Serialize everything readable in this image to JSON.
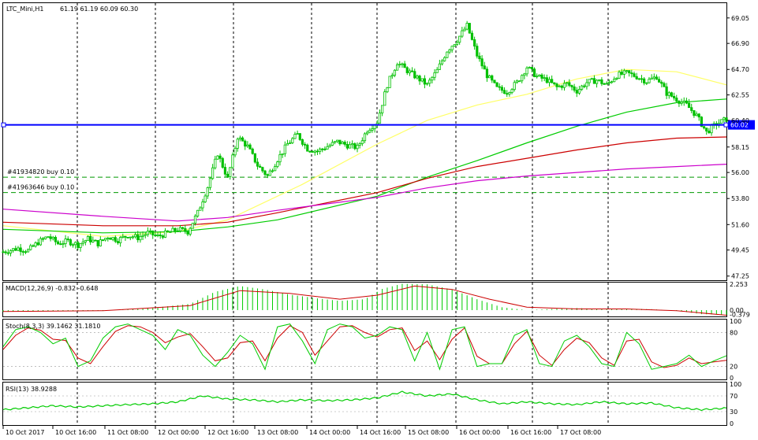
{
  "header": {
    "symbol_label": "LTC_Mini,H1",
    "ohlc_label": "61.19 61.19 60.09 60.30"
  },
  "colors": {
    "background": "#ffffff",
    "frame": "#000000",
    "candle_up": "#00c000",
    "candle_down": "#00c000",
    "ma_fast": "#ffff66",
    "ma_mid": "#00cc00",
    "ma_slow": "#cc0000",
    "ma_slowest": "#cc00cc",
    "price_line": "#0000ff",
    "orders": "#009900",
    "macd_hist": "#00cc00",
    "macd_signal": "#cc0000",
    "stoch_main": "#00cc00",
    "stoch_signal": "#cc0000",
    "rsi": "#00cc00"
  },
  "chart_data": {
    "type": "candlestick",
    "symbol": "LTC_Mini",
    "timeframe": "H1",
    "y_axis_ticks": [
      "69.05",
      "66.90",
      "64.70",
      "62.55",
      "60.40",
      "58.15",
      "56.00",
      "53.80",
      "51.60",
      "49.45",
      "47.25"
    ],
    "ylim": [
      46.9,
      70.3
    ],
    "x_axis_labels": [
      "10 Oct 2017",
      "10 Oct 16:00",
      "11 Oct 08:00",
      "12 Oct 00:00",
      "12 Oct 16:00",
      "13 Oct 08:00",
      "14 Oct 00:00",
      "14 Oct 16:00",
      "15 Oct 08:00",
      "16 Oct 00:00",
      "16 Oct 16:00",
      "17 Oct 08:00"
    ],
    "current_price": "60.02",
    "horizontal_line": 60.02,
    "orders": [
      {
        "label": "#41934820 buy 0.10",
        "price": 55.6
      },
      {
        "label": "#41963646 buy 0.10",
        "price": 54.3
      }
    ],
    "price_path": [
      [
        0,
        49.3
      ],
      [
        6,
        49.6
      ],
      [
        10,
        49.4
      ],
      [
        14,
        50.1
      ],
      [
        18,
        50.6
      ],
      [
        22,
        50.0
      ],
      [
        26,
        50.2
      ],
      [
        30,
        49.9
      ],
      [
        34,
        50.4
      ],
      [
        38,
        50.0
      ],
      [
        42,
        50.6
      ],
      [
        46,
        50.3
      ],
      [
        50,
        50.7
      ],
      [
        54,
        50.5
      ],
      [
        58,
        50.9
      ],
      [
        62,
        50.6
      ],
      [
        66,
        50.9
      ],
      [
        70,
        51.2
      ],
      [
        74,
        51.0
      ],
      [
        78,
        52.6
      ],
      [
        82,
        54.8
      ],
      [
        86,
        57.6
      ],
      [
        90,
        55.5
      ],
      [
        94,
        59.0
      ],
      [
        98,
        58.2
      ],
      [
        102,
        56.6
      ],
      [
        106,
        55.7
      ],
      [
        110,
        57.1
      ],
      [
        114,
        58.4
      ],
      [
        118,
        59.2
      ],
      [
        122,
        58.0
      ],
      [
        126,
        57.8
      ],
      [
        130,
        58.2
      ],
      [
        134,
        58.6
      ],
      [
        138,
        58.3
      ],
      [
        142,
        58.1
      ],
      [
        146,
        59.6
      ],
      [
        150,
        60.3
      ],
      [
        154,
        63.4
      ],
      [
        158,
        65.3
      ],
      [
        162,
        64.6
      ],
      [
        166,
        64.0
      ],
      [
        170,
        63.4
      ],
      [
        174,
        64.6
      ],
      [
        178,
        66.3
      ],
      [
        182,
        67.2
      ],
      [
        186,
        68.4
      ],
      [
        190,
        65.9
      ],
      [
        194,
        64.2
      ],
      [
        198,
        63.1
      ],
      [
        202,
        62.8
      ],
      [
        206,
        63.6
      ],
      [
        210,
        64.9
      ],
      [
        214,
        64.1
      ],
      [
        218,
        63.8
      ],
      [
        222,
        63.2
      ],
      [
        226,
        63.5
      ],
      [
        230,
        62.9
      ],
      [
        234,
        63.6
      ],
      [
        238,
        63.8
      ],
      [
        242,
        63.4
      ],
      [
        246,
        64.2
      ],
      [
        250,
        64.4
      ],
      [
        254,
        64.1
      ],
      [
        258,
        63.7
      ],
      [
        262,
        64.1
      ],
      [
        266,
        62.7
      ],
      [
        270,
        62.2
      ],
      [
        274,
        61.7
      ],
      [
        278,
        60.8
      ],
      [
        282,
        59.4
      ],
      [
        286,
        60.1
      ],
      [
        290,
        60.5
      ]
    ],
    "moving_averages": [
      {
        "color": "ma_fast",
        "points": [
          [
            0,
            51.5
          ],
          [
            40,
            50.6
          ],
          [
            70,
            51.0
          ],
          [
            90,
            52.0
          ],
          [
            120,
            55.0
          ],
          [
            150,
            58.4
          ],
          [
            170,
            60.4
          ],
          [
            190,
            61.7
          ],
          [
            210,
            62.6
          ],
          [
            230,
            63.9
          ],
          [
            250,
            64.7
          ],
          [
            270,
            64.5
          ],
          [
            290,
            63.4
          ]
        ]
      },
      {
        "color": "ma_mid",
        "points": [
          [
            0,
            51.2
          ],
          [
            40,
            50.9
          ],
          [
            70,
            51.0
          ],
          [
            90,
            51.4
          ],
          [
            110,
            52.0
          ],
          [
            150,
            54.0
          ],
          [
            170,
            55.6
          ],
          [
            190,
            57.0
          ],
          [
            210,
            58.5
          ],
          [
            230,
            59.9
          ],
          [
            250,
            61.1
          ],
          [
            270,
            61.9
          ],
          [
            290,
            62.2
          ]
        ]
      },
      {
        "color": "ma_slow",
        "points": [
          [
            0,
            51.8
          ],
          [
            40,
            51.5
          ],
          [
            70,
            51.5
          ],
          [
            90,
            51.8
          ],
          [
            110,
            52.6
          ],
          [
            150,
            54.3
          ],
          [
            170,
            55.5
          ],
          [
            190,
            56.5
          ],
          [
            210,
            57.2
          ],
          [
            230,
            57.9
          ],
          [
            250,
            58.5
          ],
          [
            270,
            58.9
          ],
          [
            290,
            59.0
          ]
        ]
      },
      {
        "color": "ma_slowest",
        "points": [
          [
            0,
            52.9
          ],
          [
            40,
            52.3
          ],
          [
            70,
            51.9
          ],
          [
            90,
            52.2
          ],
          [
            110,
            52.8
          ],
          [
            150,
            53.9
          ],
          [
            170,
            54.7
          ],
          [
            190,
            55.3
          ],
          [
            210,
            55.7
          ],
          [
            230,
            56.0
          ],
          [
            250,
            56.3
          ],
          [
            270,
            56.5
          ],
          [
            290,
            56.7
          ]
        ]
      }
    ],
    "macd": {
      "label": "MACD(12,26,9) -0.832 -0.648",
      "ticks": [
        "2.253",
        "0.00",
        "-0.379"
      ],
      "ylim": [
        -0.55,
        2.4
      ],
      "histogram": [
        [
          0,
          -0.15
        ],
        [
          20,
          -0.1
        ],
        [
          40,
          -0.05
        ],
        [
          60,
          0.2
        ],
        [
          75,
          0.55
        ],
        [
          85,
          1.6
        ],
        [
          95,
          2.1
        ],
        [
          105,
          1.8
        ],
        [
          115,
          1.35
        ],
        [
          125,
          1.05
        ],
        [
          135,
          0.8
        ],
        [
          145,
          0.95
        ],
        [
          152,
          1.85
        ],
        [
          160,
          2.3
        ],
        [
          170,
          2.25
        ],
        [
          180,
          1.8
        ],
        [
          190,
          0.95
        ],
        [
          200,
          0.25
        ],
        [
          210,
          0.0
        ],
        [
          220,
          0.1
        ],
        [
          230,
          0.18
        ],
        [
          240,
          0.1
        ],
        [
          250,
          0.12
        ],
        [
          260,
          0.08
        ],
        [
          270,
          -0.05
        ],
        [
          280,
          -0.35
        ],
        [
          290,
          -0.4
        ]
      ],
      "signal": [
        [
          0,
          -0.12
        ],
        [
          40,
          -0.05
        ],
        [
          75,
          0.4
        ],
        [
          95,
          1.7
        ],
        [
          115,
          1.45
        ],
        [
          135,
          0.95
        ],
        [
          150,
          1.3
        ],
        [
          165,
          2.1
        ],
        [
          180,
          1.8
        ],
        [
          195,
          0.95
        ],
        [
          210,
          0.25
        ],
        [
          230,
          0.1
        ],
        [
          250,
          0.1
        ],
        [
          270,
          -0.05
        ],
        [
          290,
          -0.45
        ]
      ]
    },
    "stochastic": {
      "label": "Stoch(8,3,3) 39.1462 31.1810",
      "ticks": [
        "100",
        "80",
        "20",
        "0"
      ],
      "ylim": [
        0,
        100
      ],
      "main": [
        [
          0,
          55
        ],
        [
          5,
          85
        ],
        [
          10,
          90
        ],
        [
          15,
          80
        ],
        [
          20,
          60
        ],
        [
          25,
          70
        ],
        [
          30,
          20
        ],
        [
          35,
          30
        ],
        [
          40,
          70
        ],
        [
          45,
          90
        ],
        [
          50,
          95
        ],
        [
          55,
          85
        ],
        [
          60,
          75
        ],
        [
          65,
          50
        ],
        [
          70,
          85
        ],
        [
          75,
          75
        ],
        [
          80,
          40
        ],
        [
          85,
          20
        ],
        [
          90,
          45
        ],
        [
          95,
          75
        ],
        [
          100,
          60
        ],
        [
          105,
          15
        ],
        [
          110,
          90
        ],
        [
          115,
          95
        ],
        [
          120,
          65
        ],
        [
          125,
          25
        ],
        [
          130,
          85
        ],
        [
          135,
          95
        ],
        [
          140,
          90
        ],
        [
          145,
          70
        ],
        [
          150,
          75
        ],
        [
          155,
          90
        ],
        [
          160,
          85
        ],
        [
          165,
          30
        ],
        [
          170,
          80
        ],
        [
          175,
          15
        ],
        [
          180,
          85
        ],
        [
          185,
          90
        ],
        [
          190,
          20
        ],
        [
          195,
          25
        ],
        [
          200,
          25
        ],
        [
          205,
          75
        ],
        [
          210,
          85
        ],
        [
          215,
          25
        ],
        [
          220,
          20
        ],
        [
          225,
          65
        ],
        [
          230,
          75
        ],
        [
          235,
          55
        ],
        [
          240,
          25
        ],
        [
          245,
          20
        ],
        [
          250,
          80
        ],
        [
          255,
          60
        ],
        [
          260,
          15
        ],
        [
          265,
          20
        ],
        [
          270,
          25
        ],
        [
          275,
          40
        ],
        [
          280,
          20
        ],
        [
          285,
          30
        ],
        [
          290,
          39
        ]
      ],
      "signal": [
        [
          0,
          50
        ],
        [
          5,
          75
        ],
        [
          10,
          88
        ],
        [
          15,
          84
        ],
        [
          20,
          68
        ],
        [
          25,
          66
        ],
        [
          30,
          35
        ],
        [
          35,
          25
        ],
        [
          40,
          55
        ],
        [
          45,
          82
        ],
        [
          50,
          92
        ],
        [
          55,
          90
        ],
        [
          60,
          80
        ],
        [
          65,
          62
        ],
        [
          70,
          72
        ],
        [
          75,
          78
        ],
        [
          80,
          55
        ],
        [
          85,
          30
        ],
        [
          90,
          35
        ],
        [
          95,
          62
        ],
        [
          100,
          65
        ],
        [
          105,
          30
        ],
        [
          110,
          70
        ],
        [
          115,
          92
        ],
        [
          120,
          80
        ],
        [
          125,
          40
        ],
        [
          130,
          65
        ],
        [
          135,
          90
        ],
        [
          140,
          92
        ],
        [
          145,
          80
        ],
        [
          150,
          72
        ],
        [
          155,
          85
        ],
        [
          160,
          88
        ],
        [
          165,
          48
        ],
        [
          170,
          65
        ],
        [
          175,
          32
        ],
        [
          180,
          68
        ],
        [
          185,
          88
        ],
        [
          190,
          38
        ],
        [
          195,
          25
        ],
        [
          200,
          25
        ],
        [
          205,
          60
        ],
        [
          210,
          82
        ],
        [
          215,
          40
        ],
        [
          220,
          22
        ],
        [
          225,
          50
        ],
        [
          230,
          70
        ],
        [
          235,
          62
        ],
        [
          240,
          35
        ],
        [
          245,
          22
        ],
        [
          250,
          65
        ],
        [
          255,
          68
        ],
        [
          260,
          28
        ],
        [
          265,
          18
        ],
        [
          270,
          22
        ],
        [
          275,
          35
        ],
        [
          280,
          25
        ],
        [
          285,
          28
        ],
        [
          290,
          31
        ]
      ]
    },
    "rsi": {
      "label": "RSI(13) 38.9288",
      "ticks": [
        "100",
        "70",
        "30",
        "0"
      ],
      "ylim": [
        0,
        100
      ],
      "values": [
        [
          0,
          35
        ],
        [
          10,
          40
        ],
        [
          20,
          45
        ],
        [
          30,
          42
        ],
        [
          40,
          45
        ],
        [
          50,
          48
        ],
        [
          60,
          50
        ],
        [
          70,
          55
        ],
        [
          80,
          70
        ],
        [
          90,
          62
        ],
        [
          100,
          60
        ],
        [
          110,
          55
        ],
        [
          120,
          60
        ],
        [
          130,
          58
        ],
        [
          140,
          60
        ],
        [
          150,
          65
        ],
        [
          160,
          80
        ],
        [
          170,
          70
        ],
        [
          180,
          75
        ],
        [
          190,
          60
        ],
        [
          200,
          50
        ],
        [
          210,
          55
        ],
        [
          220,
          50
        ],
        [
          230,
          48
        ],
        [
          240,
          55
        ],
        [
          250,
          50
        ],
        [
          260,
          52
        ],
        [
          270,
          40
        ],
        [
          280,
          35
        ],
        [
          290,
          39
        ]
      ]
    }
  }
}
